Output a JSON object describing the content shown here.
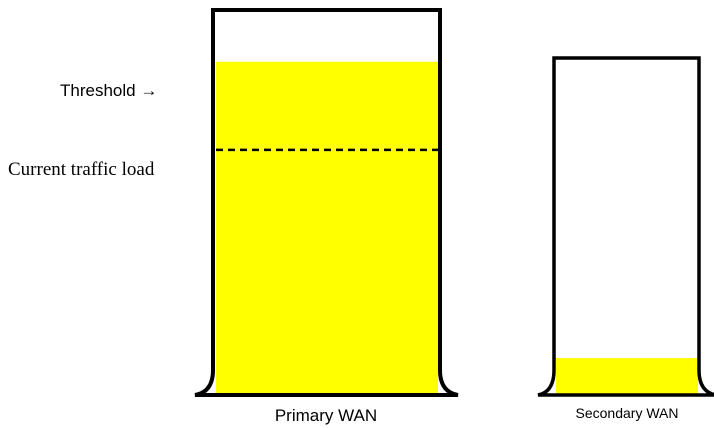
{
  "threshold_label": "Threshold →",
  "current_load_label": "Current traffic load",
  "primary": {
    "label": "Primary WAN",
    "load_fraction": 0.87,
    "threshold_fraction": 0.64
  },
  "secondary": {
    "label": "Secondary WAN",
    "load_fraction": 0.11
  },
  "colors": {
    "fill": "#ffff00",
    "outline": "#000000",
    "background": "#ffffff"
  }
}
